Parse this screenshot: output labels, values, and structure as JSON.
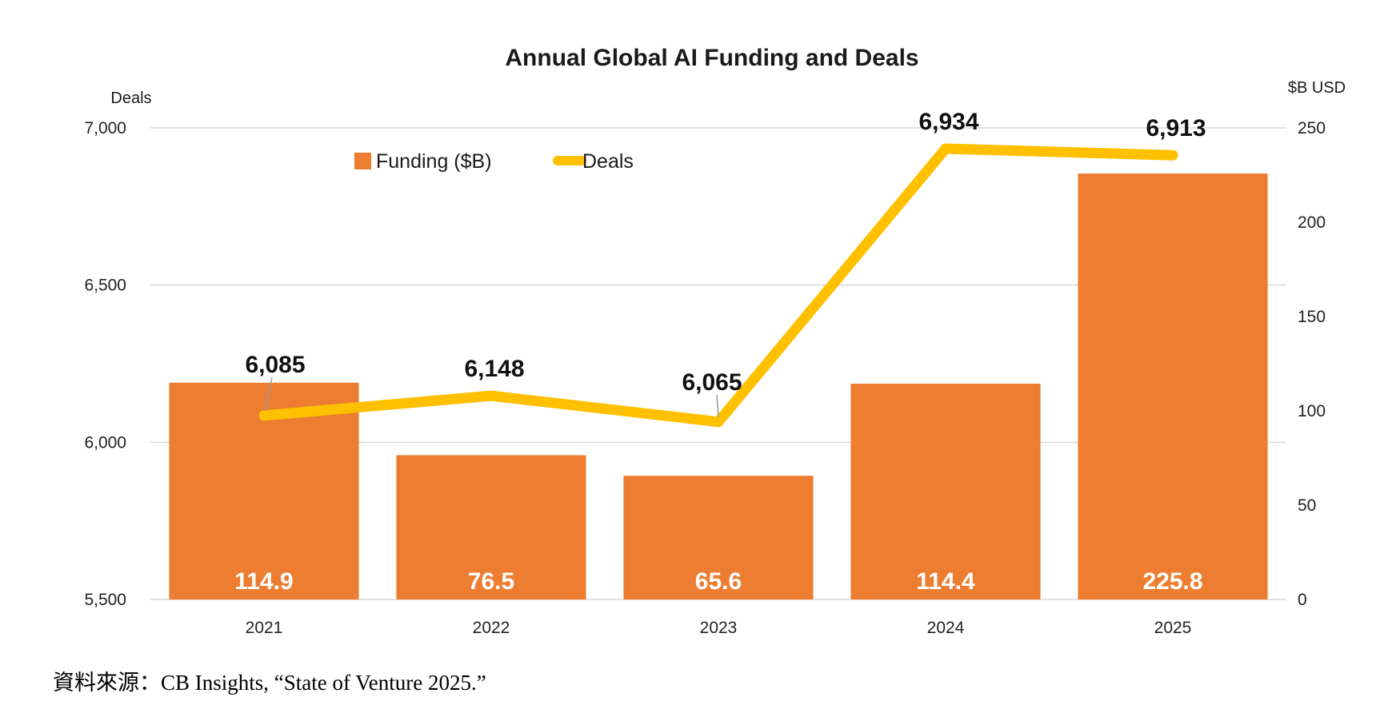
{
  "chart_data": {
    "type": "bar+line",
    "title": "Annual Global AI Funding and Deals",
    "categories": [
      "2021",
      "2022",
      "2023",
      "2024",
      "2025"
    ],
    "series": [
      {
        "name": "Funding ($B)",
        "type": "bar",
        "axis": "right",
        "values": [
          114.9,
          76.5,
          65.6,
          114.4,
          225.8
        ],
        "labels": [
          "114.9",
          "76.5",
          "65.6",
          "114.4",
          "225.8"
        ]
      },
      {
        "name": "Deals",
        "type": "line",
        "axis": "left",
        "values": [
          6085,
          6148,
          6065,
          6934,
          6913
        ],
        "labels": [
          "6,085",
          "6,148",
          "6,065",
          "6,934",
          "6,913"
        ]
      }
    ],
    "left_axis": {
      "label": "Deals",
      "range": [
        5500,
        7000
      ],
      "ticks": [
        5500,
        6000,
        6500,
        7000
      ],
      "tick_labels": [
        "5,500",
        "6,000",
        "6,500",
        "7,000"
      ]
    },
    "right_axis": {
      "label": "$B USD",
      "range": [
        0,
        250
      ],
      "ticks": [
        0,
        50,
        100,
        150,
        200,
        250
      ],
      "tick_labels": [
        "0",
        "50",
        "100",
        "150",
        "200",
        "250"
      ]
    },
    "legend": {
      "position": "top-left",
      "entries": [
        "Funding ($B)",
        "Deals"
      ]
    },
    "colors": {
      "bar": "#ED7D31",
      "line": "#FFC000",
      "grid": "#D9D9D9"
    },
    "grid": true
  },
  "source_note": "資料來源：CB Insights, “State of Venture 2025.”"
}
